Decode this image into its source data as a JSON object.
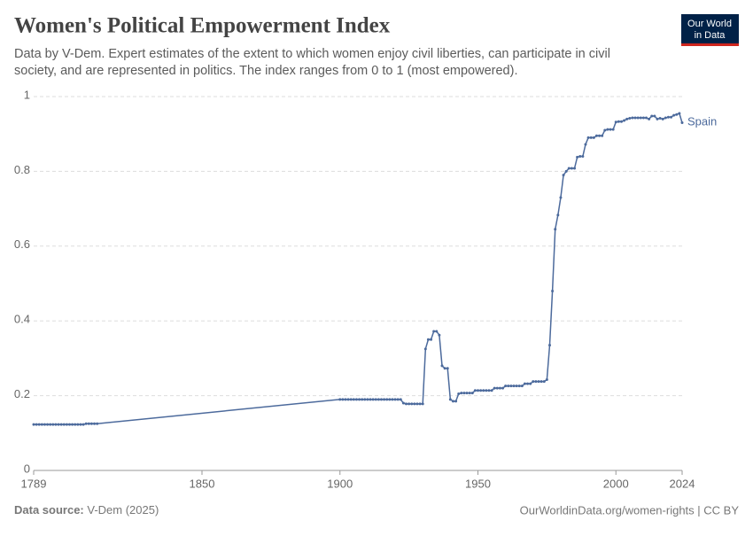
{
  "chart_data": {
    "type": "line",
    "title": "Women's Political Empowerment Index",
    "subtitle": [
      "Data by V-Dem. Expert estimates of the extent to which women enjoy civil liberties, can participate in civil",
      "society, and are represented in politics. The index ranges from 0 to 1 (most empowered)."
    ],
    "logo": [
      "Our World",
      "in Data"
    ],
    "source_label": "Data source:",
    "source": "V-Dem (2025)",
    "credit": "OurWorldinData.org/women-rights | CC BY",
    "xlim": [
      1789,
      2024
    ],
    "xticks": [
      1789,
      1850,
      1900,
      1950,
      2000,
      2024
    ],
    "ylim": [
      0,
      1
    ],
    "yticks": [
      0,
      0.2,
      0.4,
      0.6,
      0.8,
      1
    ],
    "grid": true,
    "x": [
      1789,
      1790,
      1791,
      1792,
      1793,
      1794,
      1795,
      1796,
      1797,
      1798,
      1799,
      1800,
      1801,
      1802,
      1803,
      1804,
      1805,
      1806,
      1807,
      1808,
      1809,
      1810,
      1811,
      1812,
      1900,
      1901,
      1902,
      1903,
      1904,
      1905,
      1906,
      1907,
      1908,
      1909,
      1910,
      1911,
      1912,
      1913,
      1914,
      1915,
      1916,
      1917,
      1918,
      1919,
      1920,
      1921,
      1922,
      1923,
      1924,
      1925,
      1926,
      1927,
      1928,
      1929,
      1930,
      1931,
      1932,
      1933,
      1934,
      1935,
      1936,
      1937,
      1938,
      1939,
      1940,
      1941,
      1942,
      1943,
      1944,
      1945,
      1946,
      1947,
      1948,
      1949,
      1950,
      1951,
      1952,
      1953,
      1954,
      1955,
      1956,
      1957,
      1958,
      1959,
      1960,
      1961,
      1962,
      1963,
      1964,
      1965,
      1966,
      1967,
      1968,
      1969,
      1970,
      1971,
      1972,
      1973,
      1974,
      1975,
      1976,
      1977,
      1978,
      1979,
      1980,
      1981,
      1982,
      1983,
      1984,
      1985,
      1986,
      1987,
      1988,
      1989,
      1990,
      1991,
      1992,
      1993,
      1994,
      1995,
      1996,
      1997,
      1998,
      1999,
      2000,
      2001,
      2002,
      2003,
      2004,
      2005,
      2006,
      2007,
      2008,
      2009,
      2010,
      2011,
      2012,
      2013,
      2014,
      2015,
      2016,
      2017,
      2018,
      2019,
      2020,
      2021,
      2022,
      2023,
      2024
    ],
    "series": [
      {
        "name": "Spain",
        "color": "#4c6a9c",
        "values": [
          0.123,
          0.123,
          0.123,
          0.123,
          0.123,
          0.123,
          0.123,
          0.123,
          0.123,
          0.123,
          0.123,
          0.123,
          0.123,
          0.123,
          0.123,
          0.123,
          0.123,
          0.123,
          0.123,
          0.125,
          0.125,
          0.125,
          0.125,
          0.125,
          0.19,
          0.19,
          0.19,
          0.19,
          0.19,
          0.19,
          0.19,
          0.19,
          0.19,
          0.19,
          0.19,
          0.19,
          0.19,
          0.19,
          0.19,
          0.19,
          0.19,
          0.19,
          0.19,
          0.19,
          0.19,
          0.19,
          0.19,
          0.18,
          0.178,
          0.178,
          0.178,
          0.178,
          0.178,
          0.178,
          0.178,
          0.325,
          0.35,
          0.35,
          0.372,
          0.372,
          0.362,
          0.28,
          0.273,
          0.273,
          0.19,
          0.185,
          0.185,
          0.205,
          0.207,
          0.207,
          0.207,
          0.207,
          0.207,
          0.214,
          0.214,
          0.214,
          0.214,
          0.214,
          0.214,
          0.214,
          0.22,
          0.22,
          0.22,
          0.22,
          0.226,
          0.226,
          0.226,
          0.226,
          0.226,
          0.226,
          0.226,
          0.232,
          0.232,
          0.232,
          0.238,
          0.238,
          0.238,
          0.238,
          0.238,
          0.243,
          0.335,
          0.48,
          0.645,
          0.683,
          0.73,
          0.79,
          0.8,
          0.808,
          0.808,
          0.808,
          0.838,
          0.84,
          0.84,
          0.872,
          0.89,
          0.89,
          0.89,
          0.895,
          0.895,
          0.895,
          0.91,
          0.912,
          0.912,
          0.912,
          0.932,
          0.933,
          0.933,
          0.936,
          0.94,
          0.942,
          0.943,
          0.943,
          0.943,
          0.943,
          0.943,
          0.943,
          0.94,
          0.948,
          0.948,
          0.94,
          0.942,
          0.94,
          0.943,
          0.945,
          0.945,
          0.95,
          0.952,
          0.955,
          0.93
        ]
      }
    ]
  }
}
